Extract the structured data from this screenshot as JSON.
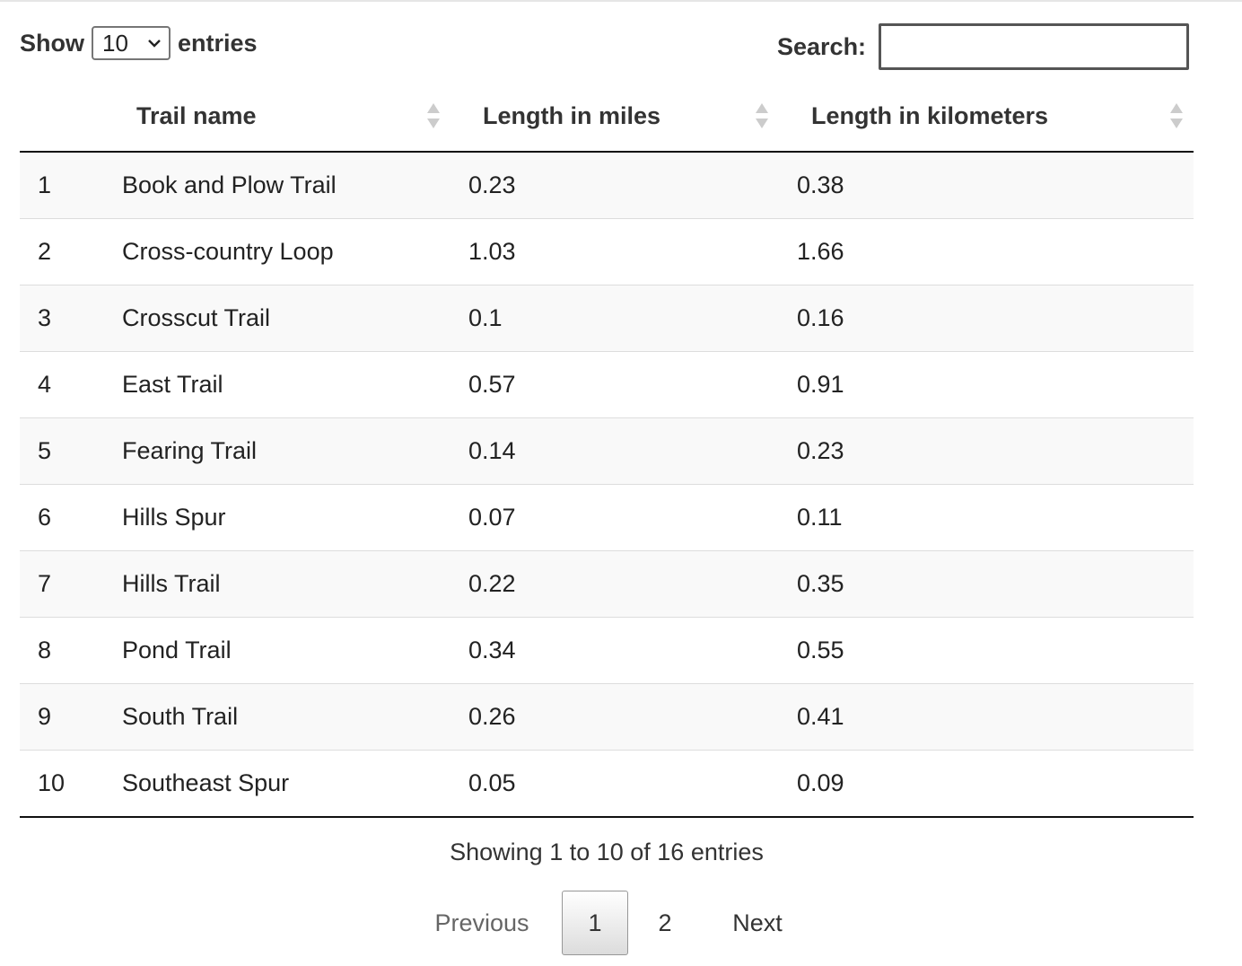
{
  "length_control": {
    "prefix": "Show",
    "selected": "10",
    "suffix": "entries"
  },
  "search": {
    "label": "Search:",
    "value": "",
    "placeholder": ""
  },
  "table": {
    "columns": [
      "",
      "Trail name",
      "Length in miles",
      "Length in kilometers"
    ],
    "rows": [
      [
        "1",
        "Book and Plow Trail",
        "0.23",
        "0.38"
      ],
      [
        "2",
        "Cross-country Loop",
        "1.03",
        "1.66"
      ],
      [
        "3",
        "Crosscut Trail",
        "0.1",
        "0.16"
      ],
      [
        "4",
        "East Trail",
        "0.57",
        "0.91"
      ],
      [
        "5",
        "Fearing Trail",
        "0.14",
        "0.23"
      ],
      [
        "6",
        "Hills Spur",
        "0.07",
        "0.11"
      ],
      [
        "7",
        "Hills Trail",
        "0.22",
        "0.35"
      ],
      [
        "8",
        "Pond Trail",
        "0.34",
        "0.55"
      ],
      [
        "9",
        "South Trail",
        "0.26",
        "0.41"
      ],
      [
        "10",
        "Southeast Spur",
        "0.05",
        "0.09"
      ]
    ]
  },
  "info": "Showing 1 to 10 of 16 entries",
  "pagination": {
    "previous": "Previous",
    "pages": [
      "1",
      "2"
    ],
    "current": "1",
    "next": "Next"
  },
  "colors": {
    "header_rule": "#111111",
    "row_stripe": "#f9f9f9",
    "row_rule": "#dddddd",
    "sort_icon": "#cccccc"
  }
}
